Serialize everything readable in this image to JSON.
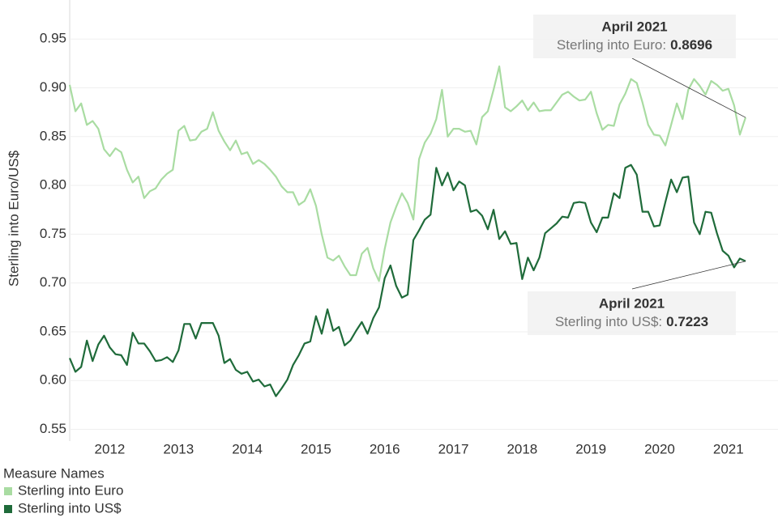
{
  "chart_data": {
    "type": "line",
    "y_label": "Sterling into Euro/US$",
    "legend_title": "Measure Names",
    "x": [
      null,
      null,
      null,
      null,
      null,
      null,
      null,
      "2012",
      null,
      null,
      null,
      null,
      null,
      null,
      null,
      null,
      null,
      null,
      null,
      "2013",
      null,
      null,
      null,
      null,
      null,
      null,
      null,
      null,
      null,
      null,
      null,
      "2014",
      null,
      null,
      null,
      null,
      null,
      null,
      null,
      null,
      null,
      null,
      null,
      "2015",
      null,
      null,
      null,
      null,
      null,
      null,
      null,
      null,
      null,
      null,
      null,
      "2016",
      null,
      null,
      null,
      null,
      null,
      null,
      null,
      null,
      null,
      null,
      null,
      "2017",
      null,
      null,
      null,
      null,
      null,
      null,
      null,
      null,
      null,
      null,
      null,
      "2018",
      null,
      null,
      null,
      null,
      null,
      null,
      null,
      null,
      null,
      null,
      null,
      "2019",
      null,
      null,
      null,
      null,
      null,
      null,
      null,
      null,
      null,
      null,
      null,
      "2020",
      null,
      null,
      null,
      null,
      null,
      null,
      null,
      null,
      null,
      null,
      null,
      "2021",
      null,
      null,
      null
    ],
    "series": [
      {
        "name": "Sterling into Euro",
        "color": "#a9dca2",
        "values": [
          0.903,
          0.876,
          0.884,
          0.862,
          0.866,
          0.858,
          0.837,
          0.83,
          0.838,
          0.834,
          0.816,
          0.803,
          0.809,
          0.787,
          0.794,
          0.797,
          0.806,
          0.812,
          0.816,
          0.856,
          0.861,
          0.846,
          0.847,
          0.855,
          0.858,
          0.875,
          0.856,
          0.845,
          0.836,
          0.846,
          0.832,
          0.834,
          0.822,
          0.826,
          0.822,
          0.816,
          0.809,
          0.799,
          0.793,
          0.793,
          0.78,
          0.784,
          0.796,
          0.779,
          0.75,
          0.726,
          0.723,
          0.728,
          0.717,
          0.708,
          0.708,
          0.73,
          0.736,
          0.715,
          0.702,
          0.735,
          0.762,
          0.778,
          0.792,
          0.782,
          0.765,
          0.827,
          0.844,
          0.853,
          0.868,
          0.898,
          0.85,
          0.858,
          0.858,
          0.855,
          0.856,
          0.842,
          0.87,
          0.876,
          0.898,
          0.922,
          0.88,
          0.876,
          0.881,
          0.887,
          0.877,
          0.885,
          0.876,
          0.877,
          0.877,
          0.885,
          0.893,
          0.896,
          0.891,
          0.887,
          0.888,
          0.896,
          0.874,
          0.857,
          0.862,
          0.861,
          0.883,
          0.894,
          0.909,
          0.905,
          0.885,
          0.862,
          0.852,
          0.851,
          0.841,
          0.862,
          0.884,
          0.868,
          0.898,
          0.909,
          0.902,
          0.893,
          0.907,
          0.903,
          0.897,
          0.899,
          0.882,
          0.852,
          0.8696
        ]
      },
      {
        "name": "Sterling into US$",
        "color": "#1f6b3a",
        "values": [
          0.623,
          0.609,
          0.614,
          0.641,
          0.62,
          0.637,
          0.646,
          0.634,
          0.627,
          0.626,
          0.616,
          0.649,
          0.638,
          0.638,
          0.63,
          0.62,
          0.621,
          0.624,
          0.619,
          0.631,
          0.658,
          0.658,
          0.643,
          0.659,
          0.659,
          0.659,
          0.646,
          0.618,
          0.622,
          0.611,
          0.607,
          0.609,
          0.599,
          0.601,
          0.594,
          0.596,
          0.584,
          0.592,
          0.601,
          0.616,
          0.626,
          0.638,
          0.64,
          0.666,
          0.648,
          0.673,
          0.651,
          0.655,
          0.636,
          0.641,
          0.651,
          0.66,
          0.648,
          0.664,
          0.675,
          0.705,
          0.718,
          0.697,
          0.685,
          0.688,
          0.744,
          0.754,
          0.765,
          0.77,
          0.818,
          0.8,
          0.813,
          0.795,
          0.804,
          0.8,
          0.773,
          0.775,
          0.769,
          0.755,
          0.775,
          0.745,
          0.753,
          0.74,
          0.741,
          0.704,
          0.726,
          0.713,
          0.726,
          0.751,
          0.756,
          0.761,
          0.768,
          0.767,
          0.782,
          0.783,
          0.782,
          0.762,
          0.752,
          0.767,
          0.767,
          0.792,
          0.787,
          0.818,
          0.821,
          0.811,
          0.773,
          0.773,
          0.758,
          0.759,
          0.783,
          0.806,
          0.793,
          0.808,
          0.809,
          0.762,
          0.75,
          0.773,
          0.772,
          0.751,
          0.733,
          0.728,
          0.716,
          0.725,
          0.7223
        ]
      }
    ],
    "ylim": [
      0.538,
      0.99
    ],
    "yticks": [
      0.55,
      {
        "value": 0.6,
        "label": "0.60"
      },
      0.65,
      {
        "value": 0.7,
        "label": "0.70"
      },
      0.75,
      {
        "value": 0.8,
        "label": "0.80"
      },
      0.85,
      {
        "value": 0.9,
        "label": "0.90"
      },
      0.95
    ],
    "grid": true,
    "annotations": [
      {
        "title": "April 2021",
        "label": "Sterling into Euro:"
      },
      {
        "title": "April 2021",
        "label": "Sterling into US$:"
      }
    ]
  }
}
